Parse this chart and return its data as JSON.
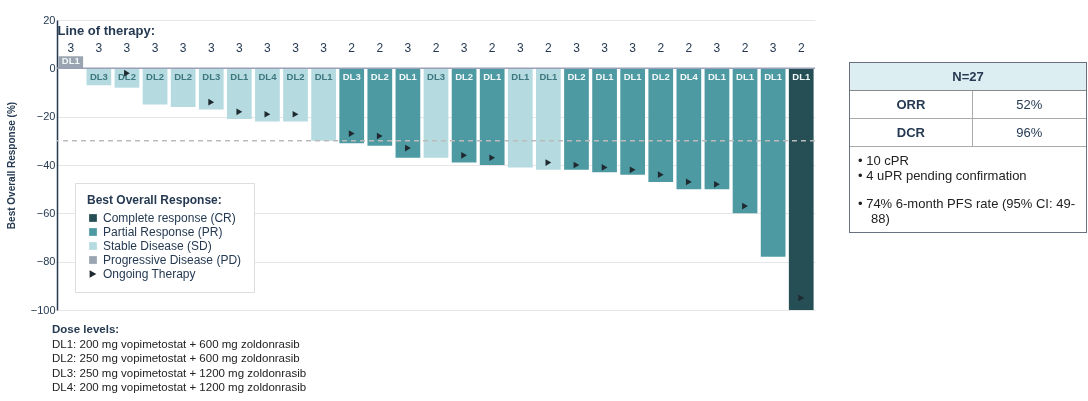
{
  "chart_data": [
    {
      "type": "bar",
      "xlabel": "Line of therapy:",
      "ylabel": "Best Overall Response (%)",
      "legend_title": "Best Overall Response:",
      "categories": [
        "3",
        "3",
        "3",
        "3",
        "3",
        "3",
        "3",
        "3",
        "3",
        "3",
        "2",
        "2",
        "3",
        "2",
        "3",
        "2",
        "3",
        "2",
        "3",
        "3",
        "3",
        "2",
        "2",
        "3",
        "2",
        "3",
        "2"
      ],
      "series": [
        {
          "name": "Complete response (CR)",
          "color": "#254f55",
          "values": [
            null,
            null,
            null,
            null,
            null,
            null,
            null,
            null,
            null,
            null,
            null,
            null,
            null,
            null,
            null,
            null,
            null,
            null,
            null,
            null,
            null,
            null,
            null,
            null,
            null,
            null,
            -100
          ],
          "value_labels": [
            null,
            null,
            null,
            null,
            null,
            null,
            null,
            null,
            null,
            null,
            null,
            null,
            null,
            null,
            null,
            null,
            null,
            null,
            null,
            null,
            null,
            null,
            null,
            null,
            null,
            null,
            "DL1"
          ]
        },
        {
          "name": "Partial Response (PR)",
          "color": "#4e9aa3",
          "values": [
            null,
            null,
            null,
            null,
            null,
            null,
            null,
            null,
            null,
            null,
            -31,
            -32,
            -37,
            null,
            -39,
            -40,
            null,
            null,
            -42,
            -43,
            -44,
            -47,
            -50,
            -50,
            -60,
            -78,
            null
          ],
          "value_labels": [
            null,
            null,
            null,
            null,
            null,
            null,
            null,
            null,
            null,
            null,
            "DL3",
            "DL2",
            "DL1",
            null,
            "DL2",
            "DL1",
            null,
            null,
            "DL2",
            "DL1",
            "DL1",
            "DL2",
            "DL4",
            "DL1",
            "DL1",
            "DL1",
            null
          ]
        },
        {
          "name": "Stable Disease (SD)",
          "color": "#b5dadf",
          "values": [
            null,
            -7,
            -8,
            -15,
            -16,
            -17,
            -21,
            -22,
            -22,
            -30,
            null,
            null,
            null,
            -37,
            null,
            null,
            -41,
            -42,
            null,
            null,
            null,
            null,
            null,
            null,
            null,
            null,
            null
          ],
          "value_labels": [
            null,
            "DL3",
            "DL2",
            "DL2",
            "DL2",
            "DL3",
            "DL1",
            "DL4",
            "DL2",
            "DL1",
            null,
            null,
            null,
            "DL3",
            null,
            null,
            "DL1",
            "DL1",
            null,
            null,
            null,
            null,
            null,
            null,
            null,
            null,
            null
          ]
        },
        {
          "name": "Progressive Disease (PD)",
          "color": "#9aa5b1",
          "values": [
            5,
            null,
            null,
            null,
            null,
            null,
            null,
            null,
            null,
            null,
            null,
            null,
            null,
            null,
            null,
            null,
            null,
            null,
            null,
            null,
            null,
            null,
            null,
            null,
            null,
            null,
            null
          ],
          "value_labels": [
            "DL1",
            null,
            null,
            null,
            null,
            null,
            null,
            null,
            null,
            null,
            null,
            null,
            null,
            null,
            null,
            null,
            null,
            null,
            null,
            null,
            null,
            null,
            null,
            null,
            null,
            null,
            null
          ]
        },
        {
          "name": "Ongoing Therapy",
          "type": "scatter",
          "marker": "triangle",
          "color": "#1f2a30",
          "values": [
            null,
            null,
            -2,
            null,
            null,
            -14,
            -18,
            -19,
            -19,
            null,
            -27,
            -28,
            -33,
            null,
            -36,
            -37,
            null,
            -39,
            -40,
            -41,
            -42,
            -44,
            -47,
            -48,
            -57,
            null,
            -95
          ]
        }
      ],
      "ylim": [
        -100,
        20
      ],
      "yticks": [
        -100,
        -80,
        -60,
        -40,
        -20,
        0,
        20
      ],
      "grid": "y",
      "legend": "bottom left",
      "ref_lines": [
        {
          "axis": "y",
          "value": -30,
          "color": "#bbbbbb",
          "line_style": "dashed"
        }
      ],
      "annotations": [
        "Dose levels:",
        "DL1: 200 mg vopimetostat + 600 mg zoldonrasib",
        "DL2: 250 mg vopimetostat + 600 mg zoldonrasib",
        "DL3: 250 mg vopimetostat + 1200 mg zoldonrasib",
        "DL4: 200 mg vopimetostat + 1200 mg zoldonrasib"
      ]
    },
    {
      "type": "other",
      "title": "N=27",
      "categories": [
        "ORR",
        "DCR"
      ],
      "value_labels": [
        "52%",
        "96%"
      ],
      "annotations": [
        "• 10 cPR",
        "• 4 uPR pending confirmation",
        "• 74% 6-month PFS rate (95% CI: 49-88)"
      ]
    }
  ]
}
